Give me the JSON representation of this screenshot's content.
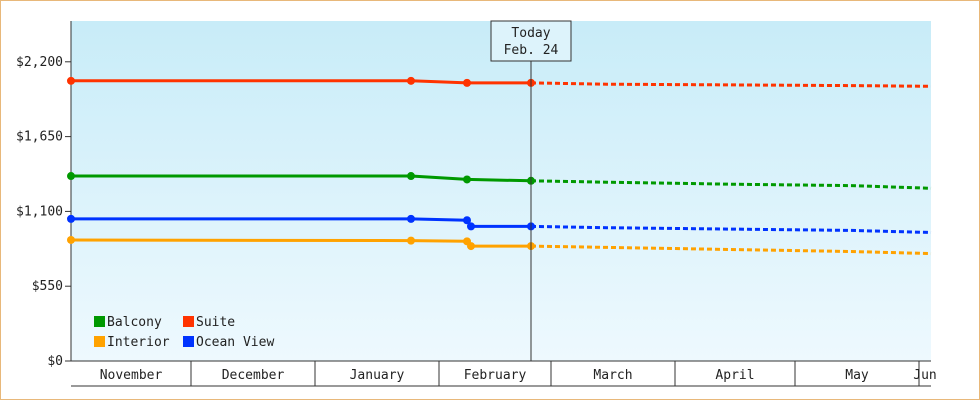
{
  "chart_data": {
    "type": "line",
    "y_ticks": [
      "$2,200",
      "$1,650",
      "$1,100",
      "$550",
      "$0"
    ],
    "y_tick_values": [
      2200,
      1650,
      1100,
      550,
      0
    ],
    "ylim": [
      0,
      2500
    ],
    "x_labels": [
      "November",
      "December",
      "January",
      "February",
      "March",
      "April",
      "May",
      "Jun"
    ],
    "x_label_dates": [
      "2024-11-01",
      "2024-12-01",
      "2025-01-01",
      "2025-02-01",
      "2025-03-01",
      "2025-04-01",
      "2025-05-01",
      "2025-06-01"
    ],
    "x_range": [
      "2024-11-01",
      "2025-06-04"
    ],
    "today": {
      "line1": "Today",
      "line2": "Feb. 24",
      "date": "2025-02-24"
    },
    "series": [
      {
        "name": "Suite",
        "color": "#ff3300",
        "actual": [
          [
            "2024-11-01",
            2060
          ],
          [
            "2025-01-25",
            2060
          ],
          [
            "2025-02-08",
            2045
          ],
          [
            "2025-02-24",
            2045
          ]
        ],
        "forecast": [
          [
            "2025-02-24",
            2045
          ],
          [
            "2025-03-15",
            2035
          ],
          [
            "2025-04-15",
            2030
          ],
          [
            "2025-05-15",
            2025
          ],
          [
            "2025-06-04",
            2020
          ]
        ]
      },
      {
        "name": "Balcony",
        "color": "#009900",
        "actual": [
          [
            "2024-11-01",
            1360
          ],
          [
            "2025-01-25",
            1360
          ],
          [
            "2025-02-08",
            1335
          ],
          [
            "2025-02-24",
            1325
          ]
        ],
        "forecast": [
          [
            "2025-02-24",
            1325
          ],
          [
            "2025-03-15",
            1315
          ],
          [
            "2025-04-15",
            1300
          ],
          [
            "2025-05-15",
            1290
          ],
          [
            "2025-06-04",
            1270
          ]
        ]
      },
      {
        "name": "Ocean View",
        "color": "#0033ff",
        "actual": [
          [
            "2024-11-01",
            1045
          ],
          [
            "2025-01-25",
            1045
          ],
          [
            "2025-02-08",
            1035
          ],
          [
            "2025-02-09",
            990
          ],
          [
            "2025-02-24",
            990
          ]
        ],
        "forecast": [
          [
            "2025-02-24",
            990
          ],
          [
            "2025-03-15",
            980
          ],
          [
            "2025-04-15",
            970
          ],
          [
            "2025-05-15",
            960
          ],
          [
            "2025-06-04",
            945
          ]
        ]
      },
      {
        "name": "Interior",
        "color": "#ffa200",
        "actual": [
          [
            "2024-11-01",
            890
          ],
          [
            "2025-01-25",
            885
          ],
          [
            "2025-02-08",
            880
          ],
          [
            "2025-02-09",
            845
          ],
          [
            "2025-02-24",
            845
          ]
        ],
        "forecast": [
          [
            "2025-02-24",
            845
          ],
          [
            "2025-03-15",
            835
          ],
          [
            "2025-04-15",
            820
          ],
          [
            "2025-05-15",
            805
          ],
          [
            "2025-06-04",
            790
          ]
        ]
      }
    ],
    "legend": [
      "Balcony",
      "Suite",
      "Interior",
      "Ocean View"
    ],
    "legend_placement": "bottom-left",
    "grid": false
  }
}
